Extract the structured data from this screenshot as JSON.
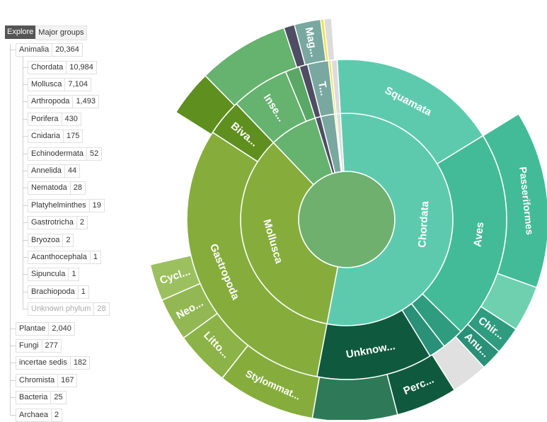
{
  "tabs": [
    {
      "label": "Explore",
      "active": true
    },
    {
      "label": "Major groups",
      "active": false
    }
  ],
  "tree": {
    "root": {
      "label": "Animalia",
      "count": "20,364"
    },
    "children": [
      {
        "label": "Chordata",
        "count": "10,984"
      },
      {
        "label": "Mollusca",
        "count": "7,104"
      },
      {
        "label": "Arthropoda",
        "count": "1,493"
      },
      {
        "label": "Porifera",
        "count": "430"
      },
      {
        "label": "Cnidaria",
        "count": "175"
      },
      {
        "label": "Echinodermata",
        "count": "52"
      },
      {
        "label": "Annelida",
        "count": "44"
      },
      {
        "label": "Nematoda",
        "count": "28"
      },
      {
        "label": "Platyhelminthes",
        "count": "19"
      },
      {
        "label": "Gastrotricha",
        "count": "2"
      },
      {
        "label": "Bryozoa",
        "count": "2"
      },
      {
        "label": "Acanthocephala",
        "count": "1"
      },
      {
        "label": "Sipuncula",
        "count": "1"
      },
      {
        "label": "Brachiopoda",
        "count": "1"
      },
      {
        "label": "Unknown phylum",
        "count": "28",
        "muted": true
      }
    ],
    "siblings": [
      {
        "label": "Plantae",
        "count": "2,040"
      },
      {
        "label": "Fungi",
        "count": "277"
      },
      {
        "label": "incertae sedis",
        "count": "182"
      },
      {
        "label": "Chromista",
        "count": "167"
      },
      {
        "label": "Bacteria",
        "count": "25"
      },
      {
        "label": "Archaea",
        "count": "2"
      }
    ]
  },
  "chart_data": {
    "type": "sunburst",
    "root": {
      "name": "Animalia",
      "value": 20364,
      "color": "#6fb06f"
    },
    "rings": [
      [
        {
          "name": "Chordata",
          "label": "Chordata",
          "value": 10984,
          "color": "#5dcaae"
        },
        {
          "name": "Mollusca",
          "label": "Mollusca",
          "value": 7104,
          "color": "#86ad3c"
        },
        {
          "name": "Arthropoda",
          "label": "",
          "value": 1493,
          "color": "#66b26f"
        },
        {
          "name": "",
          "label": "",
          "value": 175,
          "color": "#4e4d63"
        },
        {
          "name": "",
          "label": "",
          "value": 430,
          "color": "#78a8a0"
        },
        {
          "name": "",
          "label": "",
          "value": 52,
          "color": "#f2e03e"
        },
        {
          "name": "",
          "label": "",
          "value": 126,
          "color": "#dcdcdc"
        }
      ],
      [
        {
          "name": "Squamata",
          "label": "Squamata",
          "value": 3500,
          "color": "#5dcaae"
        },
        {
          "name": "Aves",
          "label": "Aves",
          "value": 4300,
          "color": "#43bb98"
        },
        {
          "name": "",
          "label": "",
          "value": 450,
          "color": "#2f9c7f"
        },
        {
          "name": "",
          "label": "",
          "value": 350,
          "color": "#2a9077"
        },
        {
          "name": "",
          "label": "Unknow...",
          "value": 2384,
          "color": "#0f5a3e"
        },
        {
          "name": "Gastropoda",
          "label": "Gastropoda",
          "value": 6350,
          "color": "#86ad3c"
        },
        {
          "name": "Bivalvia",
          "label": "Biva...",
          "value": 754,
          "color": "#5f8f1f"
        },
        {
          "name": "Insecta",
          "label": "Inse...",
          "value": 1200,
          "color": "#66b26f"
        },
        {
          "name": "",
          "label": "",
          "value": 293,
          "color": "#5aa766"
        },
        {
          "name": "",
          "label": "",
          "value": 175,
          "color": "#4e4d63"
        },
        {
          "name": "",
          "label": "T...",
          "value": 430,
          "color": "#78a8a0"
        },
        {
          "name": "",
          "label": "",
          "value": 52,
          "color": "#f2e03e"
        },
        {
          "name": "",
          "label": "",
          "value": 126,
          "color": "#dcdcdc"
        }
      ],
      [
        {
          "name": "",
          "label": "",
          "value": 3500,
          "color": null
        },
        {
          "name": "Passeriformes",
          "label": "Passeriformes",
          "value": 2900,
          "color": "#43bb98"
        },
        {
          "name": "",
          "label": "",
          "value": 750,
          "color": "#6fd0b0"
        },
        {
          "name": "Chiroptera",
          "label": "Chir...",
          "value": 450,
          "color": "#2f9c7f"
        },
        {
          "name": "Anura",
          "label": "Anu...",
          "value": 350,
          "color": "#2a9077"
        },
        {
          "name": "",
          "label": "",
          "value": 600,
          "color": "#e0e0e0"
        },
        {
          "name": "Perciformes",
          "label": "Perc...",
          "value": 1000,
          "color": "#0f5a3e"
        },
        {
          "name": "",
          "label": "",
          "value": 1384,
          "color": "#2e7a58"
        },
        {
          "name": "Stylommatophora",
          "label": "Stylommat...",
          "value": 1600,
          "color": "#86ad3c"
        },
        {
          "name": "Littorinimorpha",
          "label": "Litto...",
          "value": 900,
          "color": "#8cb347"
        },
        {
          "name": "Neogastropoda",
          "label": "Neo...",
          "value": 700,
          "color": "#93b853"
        },
        {
          "name": "Cycloneritida",
          "label": "Cycl...",
          "value": 600,
          "color": "#9cc060"
        },
        {
          "name": "",
          "label": "",
          "value": 2550,
          "color": null
        },
        {
          "name": "",
          "label": "",
          "value": 754,
          "color": "#5f8f1f"
        },
        {
          "name": "",
          "label": "",
          "value": 1493,
          "color": "#66b26f"
        },
        {
          "name": "",
          "label": "",
          "value": 175,
          "color": "#4e4d63"
        },
        {
          "name": "",
          "label": "Mag...",
          "value": 430,
          "color": "#78a8a0"
        },
        {
          "name": "",
          "label": "",
          "value": 52,
          "color": "#f2e03e"
        },
        {
          "name": "",
          "label": "",
          "value": 126,
          "color": "#dcdcdc"
        }
      ]
    ]
  }
}
